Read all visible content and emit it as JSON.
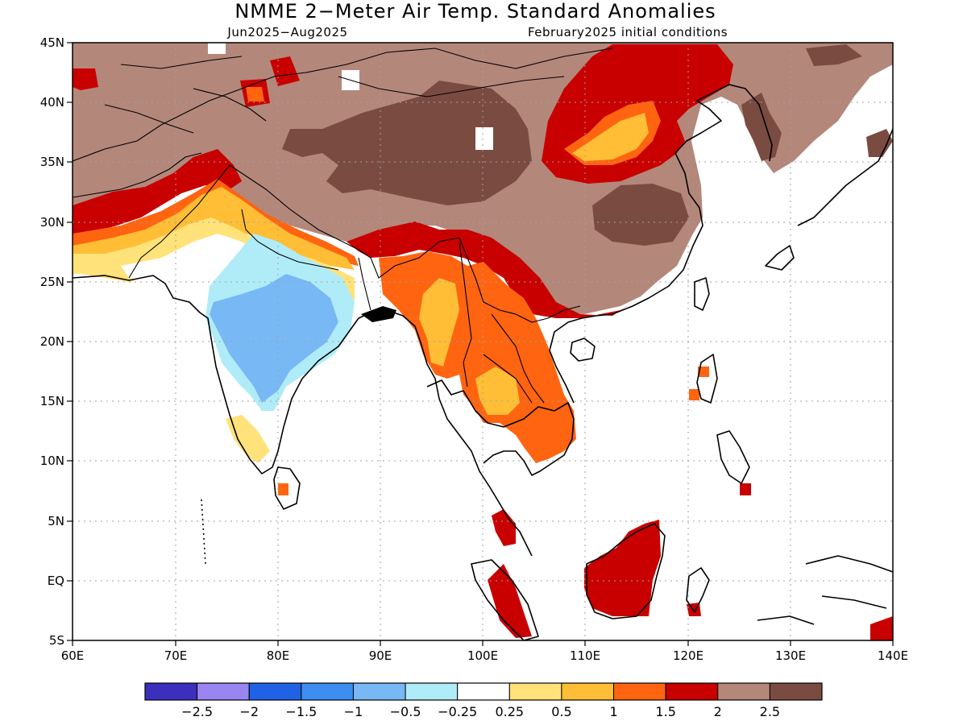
{
  "title": "NMME 2−Meter Air Temp. Standard Anomalies",
  "subtitle_left": "Jun2025−Aug2025",
  "subtitle_right": "February2025 initial conditions",
  "map": {
    "lon_range": [
      60,
      140
    ],
    "lat_range": [
      -5,
      45
    ],
    "x_ticks": [
      "60E",
      "70E",
      "80E",
      "90E",
      "100E",
      "110E",
      "120E",
      "130E",
      "140E"
    ],
    "y_ticks": [
      "45N",
      "40N",
      "35N",
      "30N",
      "25N",
      "20N",
      "15N",
      "10N",
      "5N",
      "EQ",
      "5S"
    ]
  },
  "colorbar": {
    "colors": [
      "#3c2fbe",
      "#9a86f0",
      "#1f62e6",
      "#3d8ef0",
      "#78b8f5",
      "#b0ecf8",
      "#ffffff",
      "#ffe27a",
      "#ffbe35",
      "#ff6410",
      "#c80000",
      "#b4877b",
      "#7a4c41"
    ],
    "labels": [
      "−2.5",
      "−2",
      "−1.5",
      "−1",
      "−0.5",
      "−0.25",
      "0.25",
      "0.5",
      "1",
      "1.5",
      "2",
      "2.5"
    ]
  }
}
